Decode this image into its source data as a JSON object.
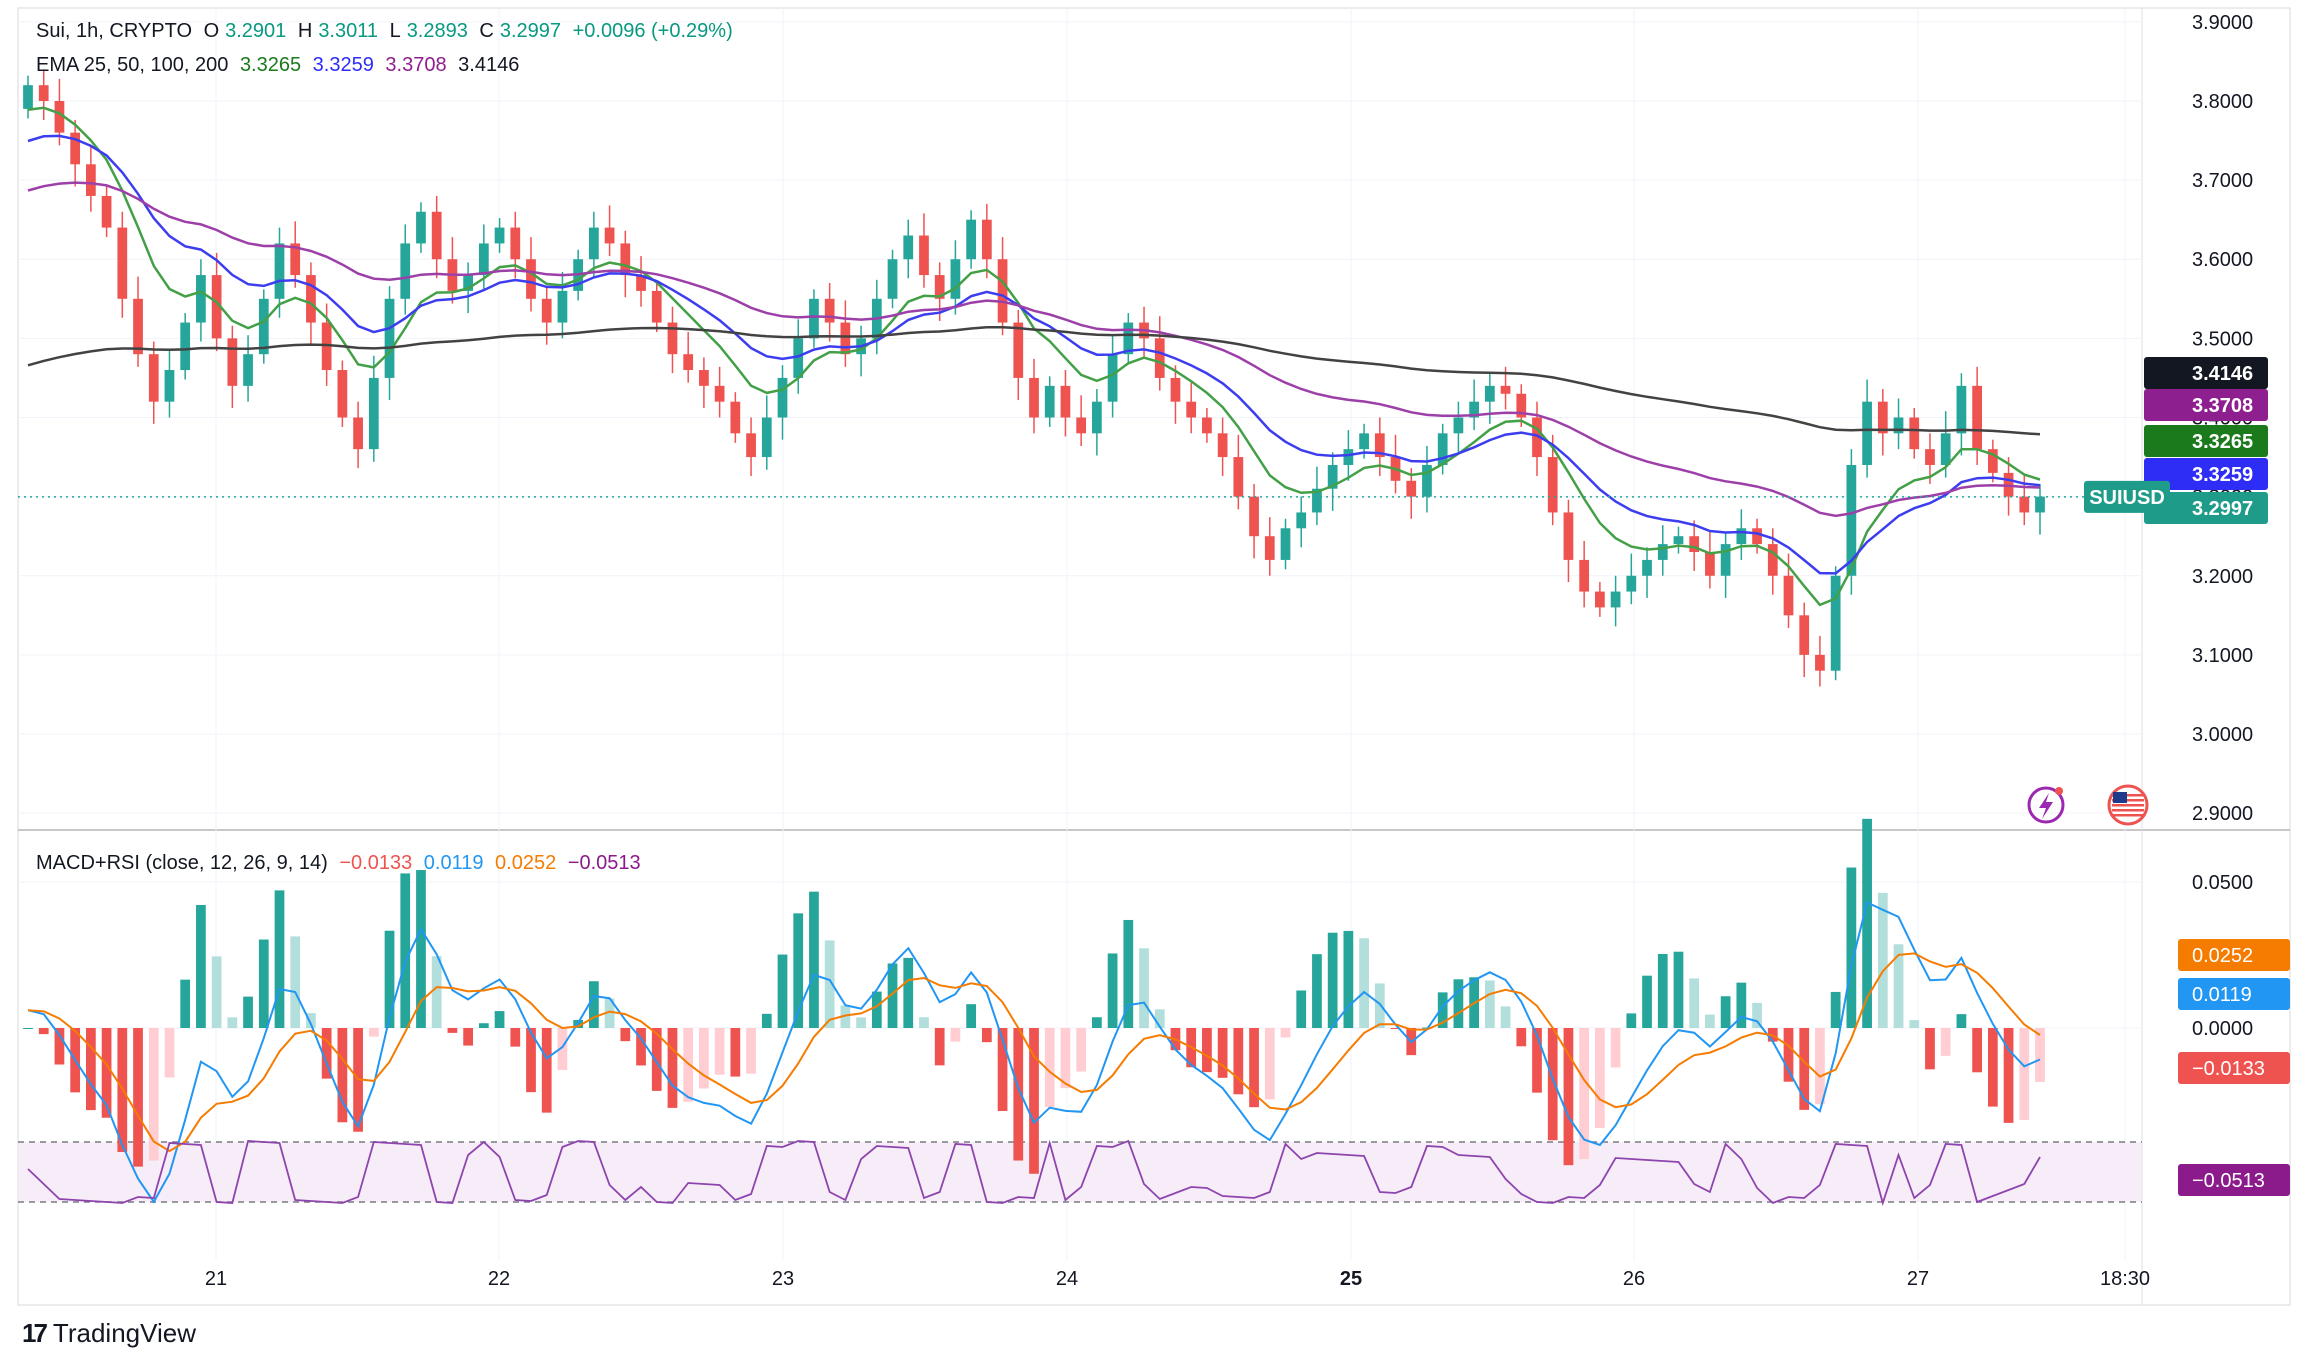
{
  "header": {
    "symbol": "Sui, 1h, CRYPTO",
    "ohlc": [
      {
        "k": "O",
        "v": "3.2901"
      },
      {
        "k": "H",
        "v": "3.3011"
      },
      {
        "k": "L",
        "v": "3.2893"
      },
      {
        "k": "C",
        "v": "3.2997"
      }
    ],
    "change": "+0.0096 (+0.29%)",
    "ema_label": "EMA 25, 50, 100, 200",
    "ema_values": [
      "3.3265",
      "3.3259",
      "3.3708",
      "3.4146"
    ],
    "macd_label": "MACD+RSI (close, 12, 26, 9, 14)",
    "macd_values": [
      "−0.0133",
      "0.0119",
      "0.0252",
      "−0.0513"
    ]
  },
  "brand": {
    "logo": "17",
    "name": "TradingView"
  },
  "colors": {
    "up": "#26a69a",
    "down": "#ef5350",
    "ema25": "#43a047",
    "ema50": "#3d3df0",
    "ema100": "#9c3fa8",
    "ema200": "#424242",
    "macd": "#2196f3",
    "signal": "#f57c00",
    "rsi": "#8e44ad",
    "hist_up_strong": "#26a69a",
    "hist_up_weak": "#b2dfdb",
    "hist_down_strong": "#ef5350",
    "hist_down_weak": "#ffcdd2"
  },
  "chart_data": [
    {
      "type": "candlestick",
      "x_ticks": [
        "21",
        "22",
        "23",
        "24",
        "25",
        "26",
        "27",
        "18:30"
      ],
      "y_ticks": [
        "3.9000",
        "3.8000",
        "3.7000",
        "3.6000",
        "3.5000",
        "3.4000",
        "3.3000",
        "3.2000",
        "3.1000",
        "3.0000",
        "2.9000"
      ],
      "ylim": [
        2.9,
        3.9
      ],
      "series": [
        {
          "name": "Sui",
          "close_approx": [
            3.82,
            3.8,
            3.76,
            3.72,
            3.68,
            3.64,
            3.55,
            3.48,
            3.42,
            3.46,
            3.52,
            3.58,
            3.5,
            3.44,
            3.48,
            3.55,
            3.62,
            3.58,
            3.52,
            3.46,
            3.4,
            3.36,
            3.45,
            3.55,
            3.62,
            3.66,
            3.6,
            3.56,
            3.58,
            3.62,
            3.64,
            3.6,
            3.55,
            3.52,
            3.56,
            3.6,
            3.64,
            3.62,
            3.58,
            3.56,
            3.52,
            3.48,
            3.46,
            3.44,
            3.42,
            3.38,
            3.35,
            3.4,
            3.45,
            3.5,
            3.55,
            3.52,
            3.48,
            3.5,
            3.55,
            3.6,
            3.63,
            3.58,
            3.55,
            3.6,
            3.65,
            3.6,
            3.52,
            3.45,
            3.4,
            3.44,
            3.4,
            3.38,
            3.42,
            3.48,
            3.52,
            3.5,
            3.45,
            3.42,
            3.4,
            3.38,
            3.35,
            3.3,
            3.25,
            3.22,
            3.26,
            3.28,
            3.31,
            3.34,
            3.36,
            3.38,
            3.35,
            3.32,
            3.3,
            3.34,
            3.38,
            3.4,
            3.42,
            3.44,
            3.43,
            3.4,
            3.35,
            3.28,
            3.22,
            3.18,
            3.16,
            3.18,
            3.2,
            3.22,
            3.24,
            3.25,
            3.23,
            3.2,
            3.24,
            3.26,
            3.24,
            3.2,
            3.15,
            3.1,
            3.08,
            3.2,
            3.34,
            3.42,
            3.38,
            3.4,
            3.36,
            3.34,
            3.38,
            3.44,
            3.36,
            3.33,
            3.3,
            3.28,
            3.3
          ]
        },
        {
          "name": "EMA 25",
          "last": 3.3265
        },
        {
          "name": "EMA 50",
          "last": 3.3259
        },
        {
          "name": "EMA 100",
          "last": 3.3708
        },
        {
          "name": "EMA 200",
          "last": 3.4146
        }
      ],
      "price_labels": [
        {
          "text": "3.4146",
          "value": 3.4146,
          "color": "#131722"
        },
        {
          "text": "3.3708",
          "value": 3.3708,
          "color": "#8e1f8e"
        },
        {
          "text": "3.3265",
          "value": 3.3265,
          "color": "#1b7a1b"
        },
        {
          "text": "3.3259",
          "value": 3.3259,
          "color": "#2d2df5"
        },
        {
          "text": "3.2997",
          "value": 3.2997,
          "color": "#1f9b8a"
        }
      ],
      "last_price_tag": "SUIUSD",
      "last_price": 3.2997
    },
    {
      "type": "line+bar",
      "y_ticks": [
        "0.0500",
        "0.0000"
      ],
      "ylim": [
        -0.035,
        0.06
      ],
      "series": [
        {
          "name": "MACD",
          "last": 0.0119
        },
        {
          "name": "Signal",
          "last": 0.0252
        },
        {
          "name": "Histogram",
          "last": -0.0133
        },
        {
          "name": "RSI",
          "last": -0.0513
        }
      ],
      "value_labels": [
        {
          "text": "0.0252",
          "value": 0.0252,
          "color": "#f57c00"
        },
        {
          "text": "0.0119",
          "value": 0.0119,
          "color": "#2196f3"
        },
        {
          "text": "−0.0133",
          "value": -0.0133,
          "color": "#ef5350"
        },
        {
          "text": "−0.0513",
          "value": -0.0513,
          "color": "#8b1a8b"
        }
      ]
    }
  ]
}
